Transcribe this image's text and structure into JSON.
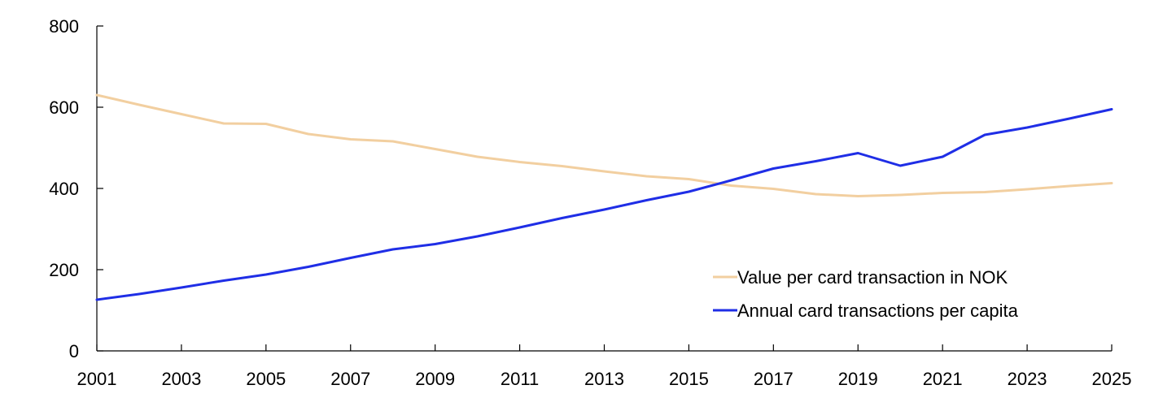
{
  "chart_data": {
    "type": "line",
    "x": [
      2001,
      2002,
      2003,
      2004,
      2005,
      2006,
      2007,
      2008,
      2009,
      2010,
      2011,
      2012,
      2013,
      2014,
      2015,
      2016,
      2017,
      2018,
      2019,
      2020,
      2021,
      2022,
      2023,
      2024,
      2025
    ],
    "xticks": [
      "2001",
      "2003",
      "2005",
      "2007",
      "2009",
      "2011",
      "2013",
      "2015",
      "2017",
      "2019",
      "2021",
      "2023",
      "2025"
    ],
    "yticks": [
      "0",
      "200",
      "400",
      "600",
      "800"
    ],
    "xlim": [
      2001,
      2025
    ],
    "ylim": [
      0,
      800
    ],
    "series": [
      {
        "name": "Value per card transaction in NOK",
        "color": "#f2cfa0",
        "values": [
          630,
          606,
          583,
          560,
          559,
          534,
          521,
          516,
          497,
          478,
          465,
          455,
          442,
          430,
          423,
          407,
          399,
          386,
          381,
          384,
          389,
          391,
          398,
          406,
          413
        ]
      },
      {
        "name": "Annual card transactions per capita",
        "color": "#1f2ee6",
        "values": [
          126,
          140,
          156,
          173,
          188,
          207,
          229,
          250,
          263,
          282,
          304,
          327,
          348,
          371,
          392,
          420,
          449,
          467,
          487,
          456,
          478,
          532,
          550,
          572,
          595
        ]
      }
    ],
    "legend_position": "bottom-right",
    "grid": false
  }
}
